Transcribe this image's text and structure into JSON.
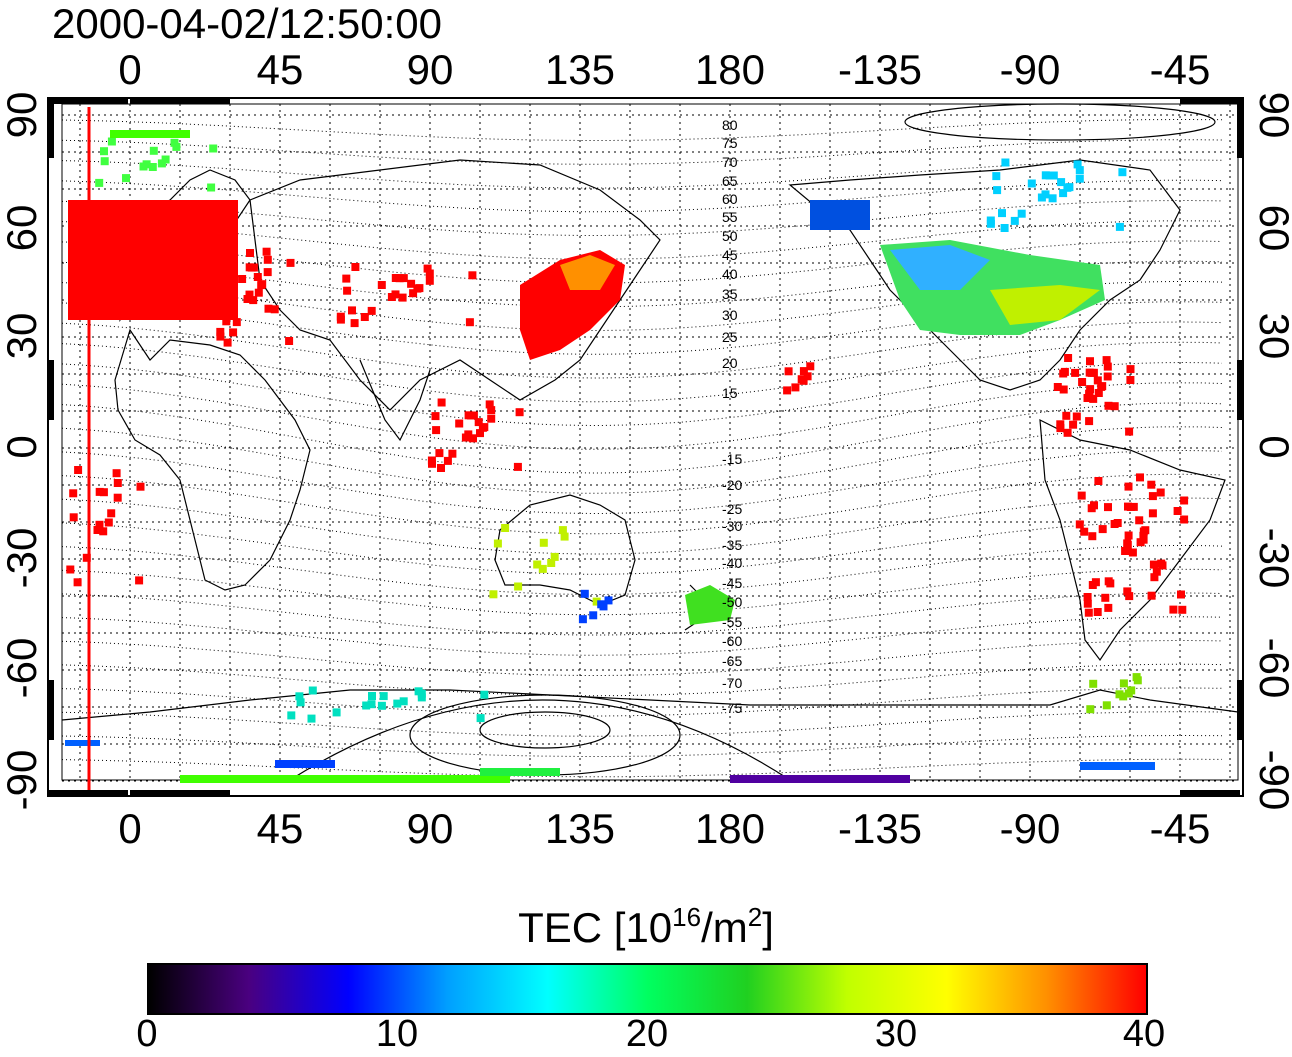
{
  "title": "2000-04-02/12:50:00",
  "axes": {
    "x_ticks": [
      "0",
      "45",
      "90",
      "135",
      "180",
      "-135",
      "-90",
      "-45"
    ],
    "y_ticks": [
      "90",
      "60",
      "30",
      "0",
      "-30",
      "-60",
      "-90"
    ]
  },
  "mlat_labels": [
    "80",
    "75",
    "70",
    "65",
    "60",
    "55",
    "50",
    "45",
    "40",
    "35",
    "30",
    "25",
    "20",
    "15",
    "-15",
    "-20",
    "-25",
    "-30",
    "-35",
    "-40",
    "-45",
    "-50",
    "-55",
    "-60",
    "-65",
    "-70",
    "-75"
  ],
  "colorbar": {
    "title_main": "TEC  [10",
    "title_exp1": "16",
    "title_mid": "/m",
    "title_exp2": "2",
    "title_end": "]",
    "ticks": [
      "0",
      "10",
      "20",
      "30",
      "40"
    ],
    "range": [
      0,
      40
    ],
    "colormap": [
      "#000000",
      "#4a0080",
      "#0000ff",
      "#00a0ff",
      "#00ffff",
      "#00ff60",
      "#20d020",
      "#c0ff00",
      "#ffff00",
      "#ff9000",
      "#ff0000"
    ]
  },
  "colors": {
    "high_tec": "#ff0000",
    "mid_tec": "#20e040",
    "low_tec": "#0060ff"
  }
}
